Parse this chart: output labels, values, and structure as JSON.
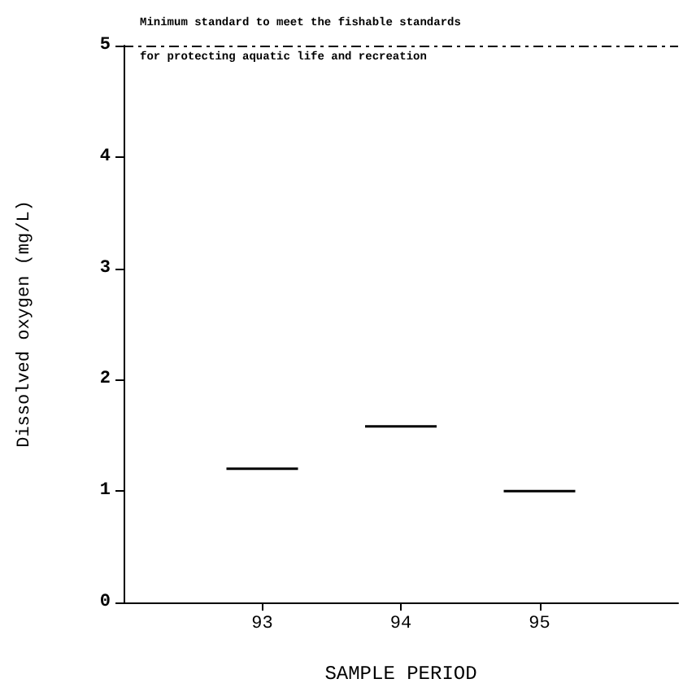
{
  "chart_data": {
    "type": "box",
    "xlabel": "SAMPLE PERIOD",
    "ylabel": "Dissolved oxygen (mg/L)",
    "categories": [
      null,
      "93",
      "94",
      "95",
      null
    ],
    "boxes": [
      null,
      {
        "low": 1.2,
        "q1": 1.2,
        "median": 1.2,
        "q3": 1.2,
        "high": 1.2
      },
      {
        "low": 1.58,
        "q1": 1.58,
        "median": 1.58,
        "q3": 1.58,
        "high": 1.58
      },
      {
        "low": 1.0,
        "q1": 1.0,
        "median": 1.0,
        "q3": 1.0,
        "high": 1.0
      },
      null
    ],
    "color": "#000000",
    "ylim": [
      0,
      5
    ],
    "yticks": [
      0,
      1,
      2,
      3,
      4,
      5
    ],
    "grid": false,
    "ref_lines": [
      {
        "axis": "y",
        "value": 5,
        "label": "Minimum standard to meet the fishable standards",
        "line_style": "dashed",
        "color": "#000000"
      }
    ],
    "annotations": [
      "for protecting aquatic life and recreation"
    ]
  }
}
